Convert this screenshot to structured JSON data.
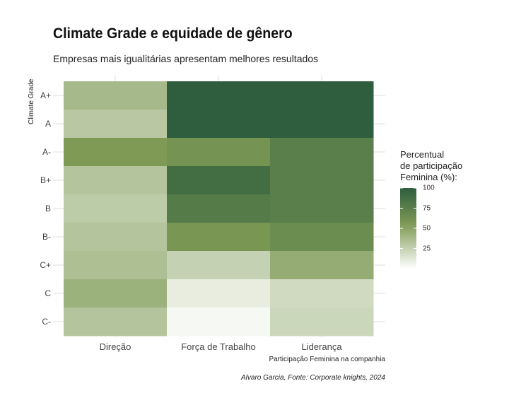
{
  "chart_data": {
    "type": "heatmap",
    "title": "Climate Grade e equidade de gênero",
    "subtitle": "Empresas mais igualitárias apresentam melhores resultados",
    "xlabel": "Participação Feminina na companhia",
    "ylabel": "Climate Grade",
    "caption": "Alvaro Garcia, Fonte: Corporate knights, 2024",
    "x_categories": [
      "Direção",
      "Força de Trabalho",
      "Liderança"
    ],
    "y_categories": [
      "A+",
      "A",
      "A-",
      "B+",
      "B",
      "B-",
      "C+",
      "C",
      "C-"
    ],
    "values": [
      [
        38,
        100,
        100
      ],
      [
        30,
        100,
        100
      ],
      [
        55,
        60,
        75
      ],
      [
        32,
        88,
        75
      ],
      [
        28,
        78,
        75
      ],
      [
        32,
        58,
        65
      ],
      [
        35,
        25,
        45
      ],
      [
        42,
        10,
        20
      ],
      [
        32,
        4,
        22
      ]
    ],
    "legend": {
      "title": "Percentual\nde participação\nFeminina (%):",
      "ticks": [
        100,
        75,
        50,
        25
      ],
      "range": [
        0,
        100
      ],
      "position": "right"
    },
    "color_scale": {
      "low": "#ffffff",
      "mid": "#7e9a55",
      "high": "#2e5e3e"
    },
    "grid": true
  }
}
